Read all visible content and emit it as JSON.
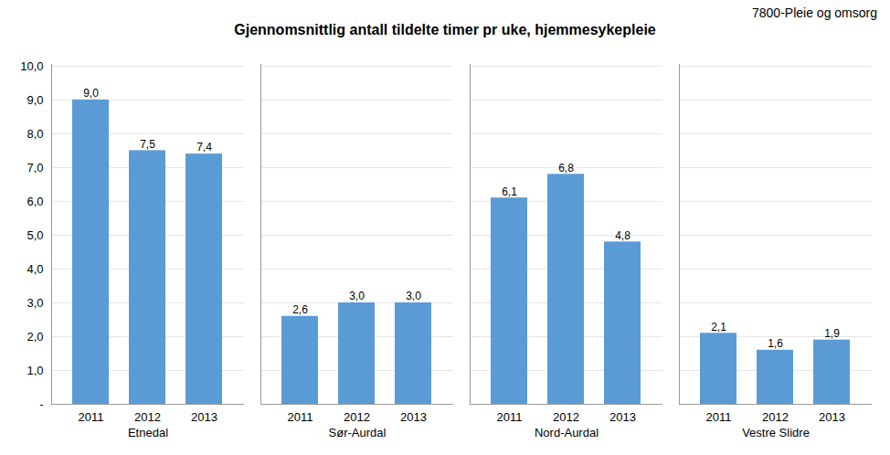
{
  "chart_data": {
    "type": "bar",
    "title": "Gjennomsnittlig antall tildelte timer pr uke, hjemmesykepleie",
    "subtitle": "7800-Pleie og omsorg",
    "categories": [
      "Etnedal",
      "Sør-Aurdal",
      "Nord-Aurdal",
      "Vestre Slidre"
    ],
    "color": "#5B9BD5",
    "series": [
      {
        "name": "2011",
        "values": [
          9.0,
          2.6,
          6.1,
          2.1
        ],
        "value_labels": [
          "9,0",
          "2,6",
          "6,1",
          "2,1"
        ]
      },
      {
        "name": "2012",
        "values": [
          7.5,
          3.0,
          6.8,
          1.6
        ],
        "value_labels": [
          "7,5",
          "3,0",
          "6,8",
          "1,6"
        ]
      },
      {
        "name": "2013",
        "values": [
          7.4,
          3.0,
          4.8,
          1.9
        ],
        "value_labels": [
          "7,4",
          "3,0",
          "4,8",
          "1,9"
        ]
      }
    ],
    "ylim": [
      0,
      10.05
    ],
    "yticks": [
      {
        "value": 0,
        "label": "-"
      },
      {
        "value": 1.0,
        "label": "1,0"
      },
      {
        "value": 2.0,
        "label": "2,0"
      },
      {
        "value": 3.0,
        "label": "3,0"
      },
      {
        "value": 4.0,
        "label": "4,0"
      },
      {
        "value": 5.0,
        "label": "5,0"
      },
      {
        "value": 6.0,
        "label": "6,0"
      },
      {
        "value": 7.0,
        "label": "7,0"
      },
      {
        "value": 8.0,
        "label": "8,0"
      },
      {
        "value": 9.0,
        "label": "9,0"
      },
      {
        "value": 10.0,
        "label": "10,0"
      }
    ],
    "grid": true,
    "data_labels": true
  }
}
